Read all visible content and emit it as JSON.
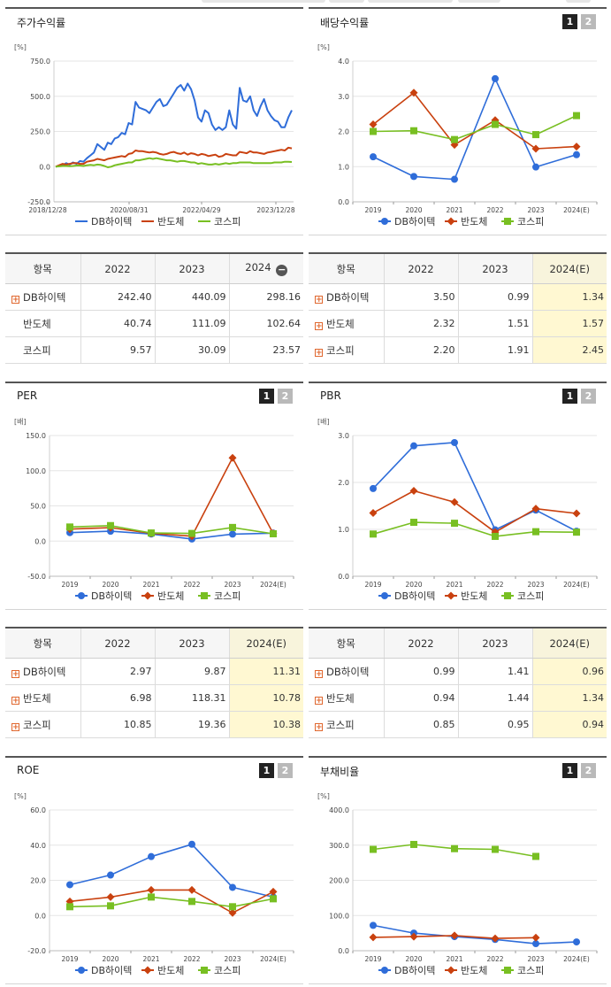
{
  "panels": [
    {
      "id": "stock",
      "title": "주가수익률",
      "buttons": [],
      "chart_data": {
        "type": "line",
        "unit": "[%]",
        "x_mode": "continuous",
        "ylim": [
          -250,
          750
        ],
        "yticks": [
          "750.0",
          "500.0",
          "250.0",
          "0.0",
          "-250.0"
        ],
        "xticks": [
          "2018/12/28",
          "2020/08/31",
          "2022/04/29",
          "2023/12/28"
        ],
        "series": [
          {
            "name": "DB하이텍",
            "color": "#2f6dd9",
            "marker": "none",
            "values": [
              0,
              5,
              10,
              25,
              15,
              30,
              20,
              40,
              35,
              60,
              80,
              100,
              160,
              140,
              120,
              170,
              160,
              200,
              210,
              240,
              230,
              310,
              300,
              460,
              420,
              410,
              400,
              380,
              420,
              460,
              480,
              430,
              440,
              480,
              520,
              560,
              580,
              540,
              590,
              550,
              470,
              350,
              320,
              400,
              380,
              300,
              260,
              280,
              260,
              280,
              400,
              300,
              270,
              560,
              470,
              460,
              500,
              400,
              360,
              430,
              480,
              400,
              360,
              330,
              320,
              280,
              280,
              350,
              400
            ]
          },
          {
            "name": "반도체",
            "color": "#c9410f",
            "marker": "none",
            "values": [
              0,
              10,
              20,
              15,
              20,
              25,
              25,
              20,
              20,
              35,
              40,
              45,
              55,
              50,
              45,
              55,
              60,
              65,
              70,
              75,
              70,
              90,
              95,
              115,
              110,
              110,
              105,
              100,
              105,
              100,
              90,
              85,
              90,
              100,
              105,
              95,
              90,
              100,
              85,
              95,
              90,
              80,
              90,
              85,
              75,
              80,
              85,
              70,
              75,
              90,
              85,
              80,
              80,
              105,
              100,
              95,
              110,
              100,
              100,
              95,
              90,
              100,
              105,
              110,
              115,
              120,
              115,
              135,
              130
            ]
          },
          {
            "name": "코스피",
            "color": "#78bf22",
            "marker": "none",
            "values": [
              0,
              2,
              5,
              5,
              3,
              5,
              8,
              8,
              5,
              10,
              12,
              10,
              15,
              12,
              5,
              -5,
              0,
              10,
              15,
              20,
              25,
              30,
              30,
              45,
              45,
              50,
              55,
              60,
              55,
              60,
              55,
              50,
              45,
              45,
              40,
              35,
              40,
              40,
              35,
              30,
              30,
              20,
              25,
              20,
              15,
              15,
              20,
              15,
              20,
              25,
              20,
              25,
              25,
              30,
              30,
              30,
              30,
              25,
              25,
              25,
              25,
              25,
              25,
              30,
              30,
              30,
              35,
              35,
              33
            ]
          }
        ],
        "legend": "bottom"
      }
    },
    {
      "id": "dividend",
      "title": "배당수익률",
      "buttons": [
        "1",
        "2"
      ],
      "chart_data": {
        "type": "line",
        "unit": "[%]",
        "ylim": [
          0,
          4
        ],
        "yticks": [
          "4.0",
          "3.0",
          "2.0",
          "1.0",
          "0.0"
        ],
        "categories": [
          "2019",
          "2020",
          "2021",
          "2022",
          "2023",
          "2024(E)"
        ],
        "series": [
          {
            "name": "DB하이텍",
            "color": "#2f6dd9",
            "marker": "circle",
            "values": [
              1.28,
              0.72,
              0.64,
              3.5,
              0.99,
              1.34
            ]
          },
          {
            "name": "반도체",
            "color": "#c9410f",
            "marker": "diamond",
            "values": [
              2.2,
              3.1,
              1.62,
              2.32,
              1.51,
              1.57
            ]
          },
          {
            "name": "코스피",
            "color": "#78bf22",
            "marker": "square",
            "values": [
              2.0,
              2.02,
              1.77,
              2.2,
              1.91,
              2.45
            ]
          }
        ],
        "legend": "bottom"
      }
    },
    {
      "id": "per",
      "title": "PER",
      "buttons": [
        "1",
        "2"
      ],
      "chart_data": {
        "type": "line",
        "unit": "[배]",
        "ylim": [
          -50,
          150
        ],
        "yticks": [
          "150.0",
          "100.0",
          "50.0",
          "0.0",
          "-50.0"
        ],
        "categories": [
          "2019",
          "2020",
          "2021",
          "2022",
          "2023",
          "2024(E)"
        ],
        "series": [
          {
            "name": "DB하이텍",
            "color": "#2f6dd9",
            "marker": "circle",
            "values": [
              12.0,
              14.0,
              10.0,
              2.97,
              9.87,
              11.31
            ]
          },
          {
            "name": "반도체",
            "color": "#c9410f",
            "marker": "diamond",
            "values": [
              17.0,
              19.0,
              11.0,
              6.98,
              118.31,
              10.78
            ]
          },
          {
            "name": "코스피",
            "color": "#78bf22",
            "marker": "square",
            "values": [
              20.0,
              22.0,
              11.5,
              10.85,
              19.36,
              10.38
            ]
          }
        ],
        "legend": "bottom"
      }
    },
    {
      "id": "pbr",
      "title": "PBR",
      "buttons": [
        "1",
        "2"
      ],
      "chart_data": {
        "type": "line",
        "unit": "[배]",
        "ylim": [
          0,
          3
        ],
        "yticks": [
          "3.0",
          "2.0",
          "1.0",
          "0.0"
        ],
        "categories": [
          "2019",
          "2020",
          "2021",
          "2022",
          "2023",
          "2024(E)"
        ],
        "series": [
          {
            "name": "DB하이텍",
            "color": "#2f6dd9",
            "marker": "circle",
            "values": [
              1.87,
              2.78,
              2.85,
              0.99,
              1.41,
              0.96
            ]
          },
          {
            "name": "반도체",
            "color": "#c9410f",
            "marker": "diamond",
            "values": [
              1.35,
              1.82,
              1.58,
              0.94,
              1.44,
              1.34
            ]
          },
          {
            "name": "코스피",
            "color": "#78bf22",
            "marker": "square",
            "values": [
              0.9,
              1.15,
              1.13,
              0.85,
              0.95,
              0.94
            ]
          }
        ],
        "legend": "bottom"
      }
    },
    {
      "id": "roe",
      "title": "ROE",
      "buttons": [
        "1",
        "2"
      ],
      "chart_data": {
        "type": "line",
        "unit": "[%]",
        "ylim": [
          -20,
          60
        ],
        "yticks": [
          "60.0",
          "40.0",
          "20.0",
          "0.0",
          "-20.0"
        ],
        "categories": [
          "2019",
          "2020",
          "2021",
          "2022",
          "2023",
          "2024(E)"
        ],
        "series": [
          {
            "name": "DB하이텍",
            "color": "#2f6dd9",
            "marker": "circle",
            "values": [
              17.5,
              23.0,
              33.5,
              40.5,
              16.0,
              10.5
            ]
          },
          {
            "name": "반도체",
            "color": "#c9410f",
            "marker": "diamond",
            "values": [
              8.0,
              10.5,
              14.5,
              14.5,
              1.5,
              13.5
            ]
          },
          {
            "name": "코스피",
            "color": "#78bf22",
            "marker": "square",
            "values": [
              5.0,
              5.5,
              10.5,
              8.0,
              5.0,
              9.5
            ]
          }
        ],
        "legend": "bottom"
      }
    },
    {
      "id": "debt",
      "title": "부채비율",
      "buttons": [
        "1",
        "2"
      ],
      "chart_data": {
        "type": "line",
        "unit": "[%]",
        "ylim": [
          0,
          400
        ],
        "yticks": [
          "400.0",
          "300.0",
          "200.0",
          "100.0",
          "0.0"
        ],
        "categories": [
          "2019",
          "2020",
          "2021",
          "2022",
          "2023",
          "2024(E)"
        ],
        "series": [
          {
            "name": "DB하이텍",
            "color": "#2f6dd9",
            "marker": "circle",
            "values": [
              72,
              50,
              40,
              32,
              20,
              25
            ]
          },
          {
            "name": "반도체",
            "color": "#c9410f",
            "marker": "diamond",
            "values": [
              38,
              40,
              43,
              35,
              37,
              null
            ]
          },
          {
            "name": "코스피",
            "color": "#78bf22",
            "marker": "square",
            "values": [
              288,
              302,
              290,
              288,
              268,
              null
            ]
          }
        ],
        "legend": "bottom"
      }
    }
  ],
  "tables": [
    {
      "id": "stock-table",
      "headers": [
        "항목",
        "2022",
        "2023",
        "2024"
      ],
      "header_minus": true,
      "highlight_last": false,
      "rows": [
        {
          "label": "DB하이텍",
          "plus": true,
          "values": [
            "242.40",
            "440.09",
            "298.16"
          ]
        },
        {
          "label": "반도체",
          "plus": false,
          "values": [
            "40.74",
            "111.09",
            "102.64"
          ]
        },
        {
          "label": "코스피",
          "plus": false,
          "values": [
            "9.57",
            "30.09",
            "23.57"
          ]
        }
      ]
    },
    {
      "id": "dividend-table",
      "headers": [
        "항목",
        "2022",
        "2023",
        "2024(E)"
      ],
      "header_minus": false,
      "highlight_last": true,
      "rows": [
        {
          "label": "DB하이텍",
          "plus": true,
          "values": [
            "3.50",
            "0.99",
            "1.34"
          ]
        },
        {
          "label": "반도체",
          "plus": true,
          "values": [
            "2.32",
            "1.51",
            "1.57"
          ]
        },
        {
          "label": "코스피",
          "plus": true,
          "values": [
            "2.20",
            "1.91",
            "2.45"
          ]
        }
      ]
    },
    {
      "id": "per-table",
      "headers": [
        "항목",
        "2022",
        "2023",
        "2024(E)"
      ],
      "header_minus": false,
      "highlight_last": true,
      "rows": [
        {
          "label": "DB하이텍",
          "plus": true,
          "values": [
            "2.97",
            "9.87",
            "11.31"
          ]
        },
        {
          "label": "반도체",
          "plus": true,
          "values": [
            "6.98",
            "118.31",
            "10.78"
          ]
        },
        {
          "label": "코스피",
          "plus": true,
          "values": [
            "10.85",
            "19.36",
            "10.38"
          ]
        }
      ]
    },
    {
      "id": "pbr-table",
      "headers": [
        "항목",
        "2022",
        "2023",
        "2024(E)"
      ],
      "header_minus": false,
      "highlight_last": true,
      "rows": [
        {
          "label": "DB하이텍",
          "plus": true,
          "values": [
            "0.99",
            "1.41",
            "0.96"
          ]
        },
        {
          "label": "반도체",
          "plus": true,
          "values": [
            "0.94",
            "1.44",
            "1.34"
          ]
        },
        {
          "label": "코스피",
          "plus": true,
          "values": [
            "0.85",
            "0.95",
            "0.94"
          ]
        }
      ]
    }
  ]
}
